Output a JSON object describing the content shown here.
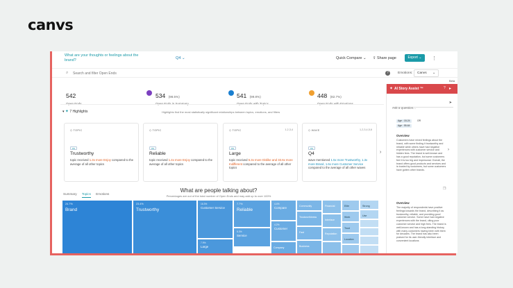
{
  "brand": "canvs",
  "topbar": {
    "question": "What are your thoughts or feelings about the brand?",
    "period": "Q4",
    "quick_compare": "Quick Compare",
    "share_page": "Share page",
    "export": "Export",
    "more": "⋮"
  },
  "search": {
    "placeholder": "Search and filter Open Ends",
    "emotions_label": "Emotions:",
    "emotions_value": "Canvs",
    "beta": "Beta"
  },
  "stats": [
    {
      "num": "542",
      "pct": "",
      "label": "Open Ends"
    },
    {
      "num": "534",
      "pct": "(98.5%)",
      "label": "Open Ends in Summary"
    },
    {
      "num": "541",
      "pct": "(99.8%)",
      "label": "Open Ends with Topics"
    },
    {
      "num": "448",
      "pct": "(82.7%)",
      "label": "Open Ends with Emotions"
    }
  ],
  "highlights": {
    "label": "7 Highlights",
    "note": "Highlights find the most statistically significant relationships between topics, emotions, and filters"
  },
  "cards": [
    {
      "tag": "TOPIC",
      "idx": "",
      "mini": "0%",
      "title": "Trustworthy",
      "pre": "topic received ",
      "hl": "1.3x more Enjoy",
      "post": " compared to the average of all other topics"
    },
    {
      "tag": "TOPIC",
      "idx": "",
      "mini": "0%",
      "title": "Reliable",
      "pre": "topic received ",
      "hl": "1.4x more Enjoy",
      "post": " compared to the average of all other topics"
    },
    {
      "tag": "TOPIC",
      "idx": "1,2,3,4",
      "mini": "0%",
      "title": "Large",
      "pre": "topic received ",
      "hl": "6.3x more Dislike and 33.6x more Indifferent",
      "post": " compared to the average of all other topics"
    },
    {
      "tag": "WAVE",
      "idx": "1,2,3,4,5,6",
      "mini": "0%",
      "title": "Q4",
      "pre": "wave mentioned ",
      "hl": "1.5x more Trustworthy, 1.3x more Brand, 1.6x more Customer Service",
      "post": " compared to the average of all other waves"
    }
  ],
  "tabs": [
    "Summary",
    "Topics",
    "Emotions"
  ],
  "talk": {
    "title": "What are people talking about?",
    "subtitle": "Percentages are out of the total number of Open Ends and may add up to over 100%"
  },
  "treemap": [
    {
      "p": "24.7%",
      "n": "Brand"
    },
    {
      "p": "23.4%",
      "n": "Trustworthy"
    },
    {
      "p": "16.3%",
      "n": "Customer Service"
    },
    {
      "p": "7.9%",
      "n": "Large"
    },
    {
      "p": "7.7%",
      "n": "Reliable"
    },
    {
      "p": "5.3%",
      "n": "Service"
    },
    {
      "p": "4.4%",
      "n": "Compare"
    },
    {
      "p": "4.2%",
      "n": "Customer"
    },
    {
      "p": "",
      "n": "Company"
    },
    {
      "p": "",
      "n": "Community"
    },
    {
      "p": "",
      "n": "Trustworthiness"
    },
    {
      "p": "",
      "n": "Fast"
    },
    {
      "p": "",
      "n": "Business"
    },
    {
      "p": "",
      "n": "Financial"
    },
    {
      "p": "",
      "n": "Interface"
    },
    {
      "p": "",
      "n": "Reputation"
    },
    {
      "p": "",
      "n": "Elite"
    },
    {
      "p": "",
      "n": "Work"
    },
    {
      "p": "",
      "n": "Trust"
    },
    {
      "p": "",
      "n": "Location"
    },
    {
      "p": "",
      "n": "Strong"
    },
    {
      "p": "",
      "n": "Use"
    }
  ],
  "panel": {
    "title": "AI Story Assist ™",
    "ask_placeholder": "Ask a question...",
    "chips": [
      "Age : 18-24",
      "OR",
      "Age : 55-64"
    ],
    "overview1_title": "Overview",
    "overview1_text": "Customers have mixed feelings about the brand, with some finding it trustworthy and reliable while others have had negative experiences with customer service and hidden fees. The brand is well-known and has a good reputation, but some customers feel it is too big and impersonal. Overall, the brand offers good products and services and is trusted by customers, but some customers have gotten other brands.",
    "overview2_title": "Overview",
    "overview2_text": "The majority of respondents have positive feelings towards the brand, describing it as trustworthy, reliable, and providing good customer service. Some have had negative experiences with the brand, citing poor customer service and high fees. The brand is well-known and has a long-standing history, with many customers having been with them for decades. The brand has also been praised for its user-friendly interface and convenient locations"
  }
}
